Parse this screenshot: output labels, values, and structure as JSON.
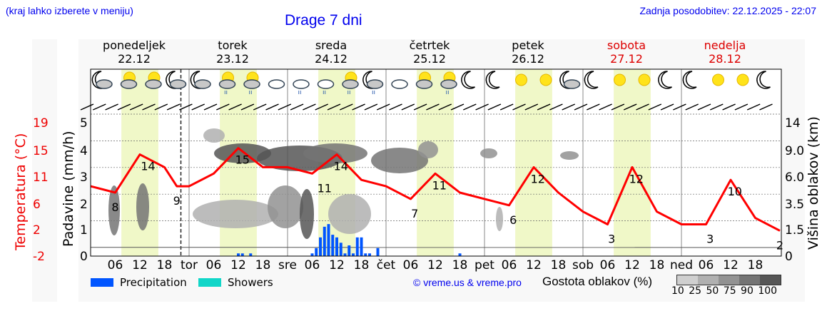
{
  "header": {
    "note": "(kraj lahko izberete v meniju)",
    "title": "Drage 7 dni",
    "updated": "Zadnja posodobitev: 22.12.2025 - 22:07"
  },
  "days": [
    {
      "name": "ponedeljek",
      "date": "22.12",
      "weekend": false
    },
    {
      "name": "torek",
      "date": "23.12",
      "weekend": false
    },
    {
      "name": "sreda",
      "date": "24.12",
      "weekend": false
    },
    {
      "name": "četrtek",
      "date": "25.12",
      "weekend": false
    },
    {
      "name": "petek",
      "date": "26.12",
      "weekend": false
    },
    {
      "name": "sobota",
      "date": "27.12",
      "weekend": true
    },
    {
      "name": "nedelja",
      "date": "28.12",
      "weekend": true
    }
  ],
  "axes": {
    "left_temp_label": "Temperatura (°C)",
    "left_temp_ticks": [
      "19",
      "15",
      "11",
      "6",
      "2",
      "-2"
    ],
    "left_precip_label": "Padavine (mm/h)",
    "left_precip_ticks": [
      "5",
      "4",
      "3",
      "2",
      "1",
      "0"
    ],
    "right_label": "Višina oblakov (km)",
    "right_ticks": [
      "14",
      "9.0",
      "6.0",
      "3.5",
      "1.5",
      "0"
    ],
    "x_ticks": [
      "06",
      "12",
      "18",
      "tor",
      "06",
      "12",
      "18",
      "sre",
      "06",
      "12",
      "18",
      "čet",
      "06",
      "12",
      "18",
      "pet",
      "06",
      "12",
      "18",
      "sob",
      "06",
      "12",
      "18",
      "ned",
      "06",
      "12",
      "18"
    ]
  },
  "legend": {
    "precip_label": "Precipitation",
    "showers_label": "Showers",
    "precip_color": "#0055ff",
    "showers_color": "#11d6c8",
    "copyright": "© vreme.us & vreme.pro",
    "cloud_density_label": "Gostota oblakov (%)",
    "cloud_scale": [
      "10",
      "25",
      "50",
      "75",
      "90",
      "100"
    ],
    "cloud_colors": [
      "#cfcfcf",
      "#b0b0b0",
      "#929292",
      "#747474",
      "#565656"
    ]
  },
  "icons": [
    "moon-cloud",
    "sun-cloud",
    "sun-cloud",
    "moon-cloud",
    "moon-cloud",
    "sun-cloud-rain",
    "sun-cloud-rain",
    "clouds",
    "cloud-rain",
    "cloud-rain",
    "sun-cloud-rain",
    "moon-cloud-rain",
    "clouds",
    "sun-cloud",
    "sun-cloud-rain",
    "moon",
    "moon",
    "sun",
    "sun",
    "moon-cloud",
    "moon",
    "sun",
    "sun",
    "moon",
    "moon",
    "sun",
    "sun",
    "moon"
  ],
  "chart_data": {
    "type": "line",
    "title": "Drage 7 dni",
    "xlabel": "",
    "ylabel": "Temperatura (°C)",
    "x_unit": "hours from 22.12 00:00",
    "series": [
      {
        "name": "Temperature (°C)",
        "color": "#ff0000",
        "x": [
          0,
          6,
          12,
          18,
          21,
          24,
          30,
          36,
          42,
          48,
          54,
          60,
          66,
          72,
          78,
          84,
          90,
          96,
          102,
          108,
          114,
          120,
          126,
          132,
          138,
          144,
          150,
          156,
          162,
          168
        ],
        "values": [
          9,
          8,
          14,
          12,
          9,
          9,
          11,
          15,
          12,
          12,
          11,
          14,
          10,
          9,
          7,
          11,
          8,
          7,
          6,
          12,
          8,
          5,
          3,
          12,
          5,
          3,
          3,
          10,
          4,
          2
        ]
      },
      {
        "name": "Precipitation (mm/h)",
        "color": "#0055ff",
        "x": [
          36,
          37,
          39,
          54,
          55,
          56,
          57,
          58,
          59,
          60,
          61,
          62,
          63,
          64,
          65,
          66,
          67,
          68,
          70,
          90
        ],
        "values": [
          0.1,
          0.1,
          0.1,
          0.1,
          0.3,
          0.7,
          1.1,
          1.2,
          0.8,
          0.7,
          0.5,
          0.1,
          0.4,
          0.1,
          0.7,
          0.7,
          0.1,
          0.1,
          0.3,
          0.1
        ]
      }
    ],
    "annotations": {
      "temp_labels": [
        {
          "x": 6,
          "value": "8"
        },
        {
          "x": 14,
          "value": "14"
        },
        {
          "x": 21,
          "value": "9"
        },
        {
          "x": 37,
          "value": "15"
        },
        {
          "x": 57,
          "value": "11"
        },
        {
          "x": 61,
          "value": "14"
        },
        {
          "x": 79,
          "value": "7"
        },
        {
          "x": 85,
          "value": "11"
        },
        {
          "x": 103,
          "value": "6"
        },
        {
          "x": 109,
          "value": "12"
        },
        {
          "x": 127,
          "value": "3"
        },
        {
          "x": 133,
          "value": "12"
        },
        {
          "x": 151,
          "value": "3"
        },
        {
          "x": 157,
          "value": "10"
        },
        {
          "x": 168,
          "value": "2"
        }
      ]
    },
    "ylim_temp": [
      -2,
      19
    ],
    "ylim_precip": [
      0,
      5
    ],
    "ylim_cloud_height_km": [
      0,
      14
    ],
    "grid": true,
    "legend_position": "bottom"
  }
}
